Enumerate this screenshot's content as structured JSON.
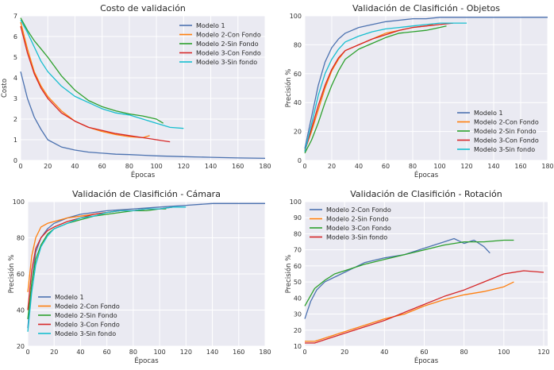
{
  "chart_data": [
    {
      "type": "line",
      "title": "Costo de validación",
      "xlabel": "Épocas",
      "ylabel": "Costo",
      "xlim": [
        0,
        180
      ],
      "ylim": [
        0,
        7
      ],
      "xticks": [
        0,
        20,
        40,
        60,
        80,
        100,
        120,
        140,
        160,
        180
      ],
      "yticks": [
        0,
        1,
        2,
        3,
        4,
        5,
        6,
        7
      ],
      "grid": true,
      "legend_position": "top-right",
      "series": [
        {
          "name": "Modelo 1",
          "color": "#4c72b0",
          "x": [
            0,
            5,
            10,
            15,
            20,
            30,
            40,
            50,
            60,
            70,
            80,
            90,
            100,
            110,
            120,
            140,
            160,
            180
          ],
          "y": [
            4.3,
            3.0,
            2.1,
            1.5,
            1.0,
            0.65,
            0.5,
            0.4,
            0.35,
            0.3,
            0.28,
            0.25,
            0.22,
            0.2,
            0.18,
            0.15,
            0.12,
            0.1
          ]
        },
        {
          "name": "Modelo 2-Con Fondo",
          "color": "#ff7f0e",
          "x": [
            0,
            5,
            10,
            15,
            20,
            30,
            40,
            50,
            60,
            70,
            80,
            90,
            95
          ],
          "y": [
            6.7,
            5.4,
            4.3,
            3.6,
            3.1,
            2.4,
            1.9,
            1.6,
            1.4,
            1.25,
            1.15,
            1.1,
            1.2
          ]
        },
        {
          "name": "Modelo 2-Sin Fondo",
          "color": "#2ca02c",
          "x": [
            0,
            5,
            10,
            15,
            20,
            30,
            40,
            50,
            60,
            70,
            80,
            90,
            100,
            105
          ],
          "y": [
            6.9,
            6.3,
            5.8,
            5.4,
            5.0,
            4.1,
            3.4,
            2.9,
            2.6,
            2.4,
            2.25,
            2.15,
            2.0,
            1.8
          ]
        },
        {
          "name": "Modelo 3-Con Fondo",
          "color": "#d62728",
          "x": [
            0,
            5,
            10,
            15,
            20,
            30,
            40,
            50,
            60,
            70,
            80,
            90,
            100,
            110
          ],
          "y": [
            6.5,
            5.2,
            4.2,
            3.5,
            3.0,
            2.3,
            1.9,
            1.6,
            1.45,
            1.3,
            1.2,
            1.1,
            1.0,
            0.9
          ]
        },
        {
          "name": "Modelo 3-Sin fondo",
          "color": "#17becf",
          "x": [
            0,
            5,
            10,
            15,
            20,
            30,
            40,
            50,
            60,
            70,
            80,
            90,
            100,
            110,
            120
          ],
          "y": [
            6.8,
            6.2,
            5.5,
            4.8,
            4.3,
            3.6,
            3.1,
            2.8,
            2.5,
            2.3,
            2.2,
            2.0,
            1.8,
            1.6,
            1.55
          ]
        }
      ]
    },
    {
      "type": "line",
      "title": "Validación de Clasifición - Objetos",
      "xlabel": "Épocas",
      "ylabel": "Precisión %",
      "xlim": [
        0,
        180
      ],
      "ylim": [
        0,
        100
      ],
      "xticks": [
        0,
        20,
        40,
        60,
        80,
        100,
        120,
        140,
        160,
        180
      ],
      "yticks": [
        0,
        20,
        40,
        60,
        80,
        100
      ],
      "grid": true,
      "legend_position": "bottom-right",
      "series": [
        {
          "name": "Modelo 1",
          "color": "#4c72b0",
          "x": [
            0,
            5,
            10,
            15,
            20,
            25,
            30,
            40,
            50,
            60,
            70,
            80,
            90,
            100,
            120,
            140,
            160,
            180
          ],
          "y": [
            8,
            30,
            52,
            68,
            78,
            84,
            88,
            92,
            94,
            96,
            97,
            98,
            98,
            99,
            99,
            99,
            99,
            99
          ]
        },
        {
          "name": "Modelo 2-Con Fondo",
          "color": "#ff7f0e",
          "x": [
            0,
            5,
            10,
            15,
            20,
            25,
            30,
            40,
            50,
            60,
            70,
            80,
            90,
            95
          ],
          "y": [
            7,
            20,
            35,
            50,
            62,
            70,
            76,
            80,
            84,
            88,
            90,
            92,
            93,
            94
          ]
        },
        {
          "name": "Modelo 2-Sin Fondo",
          "color": "#2ca02c",
          "x": [
            0,
            5,
            10,
            15,
            20,
            25,
            30,
            40,
            50,
            60,
            70,
            80,
            90,
            100,
            105
          ],
          "y": [
            5,
            14,
            26,
            40,
            52,
            62,
            70,
            77,
            81,
            85,
            88,
            89,
            90,
            92,
            93
          ]
        },
        {
          "name": "Modelo 3-Con Fondo",
          "color": "#d62728",
          "x": [
            0,
            5,
            10,
            15,
            20,
            25,
            30,
            40,
            50,
            60,
            70,
            80,
            90,
            100,
            110
          ],
          "y": [
            6,
            22,
            38,
            52,
            63,
            71,
            76,
            80,
            84,
            87,
            90,
            92,
            93,
            94,
            95
          ]
        },
        {
          "name": "Modelo 3-Sin fondo",
          "color": "#17becf",
          "x": [
            0,
            5,
            10,
            15,
            20,
            25,
            30,
            40,
            50,
            60,
            70,
            80,
            90,
            100,
            110,
            120
          ],
          "y": [
            6,
            25,
            45,
            60,
            70,
            77,
            82,
            86,
            89,
            91,
            92,
            93,
            94,
            95,
            95,
            95
          ]
        }
      ]
    },
    {
      "type": "line",
      "title": "Validación de Clasifición - Cámara",
      "xlabel": "Épocas",
      "ylabel": "Precisión %",
      "xlim": [
        0,
        180
      ],
      "ylim": [
        20,
        100
      ],
      "xticks": [
        0,
        20,
        40,
        60,
        80,
        100,
        120,
        140,
        160,
        180
      ],
      "yticks": [
        20,
        40,
        60,
        80,
        100
      ],
      "grid": true,
      "legend_position": "bottom-left",
      "series": [
        {
          "name": "Modelo 1",
          "color": "#4c72b0",
          "x": [
            0,
            3,
            6,
            10,
            15,
            20,
            30,
            40,
            50,
            60,
            80,
            100,
            120,
            140,
            160,
            180
          ],
          "y": [
            30,
            55,
            72,
            80,
            85,
            88,
            91,
            93,
            94,
            95,
            96,
            97,
            98,
            99,
            99,
            99
          ]
        },
        {
          "name": "Modelo 2-Con Fondo",
          "color": "#ff7f0e",
          "x": [
            0,
            3,
            6,
            10,
            15,
            20,
            30,
            40,
            50,
            60,
            70,
            80,
            90,
            95
          ],
          "y": [
            50,
            70,
            80,
            86,
            88,
            89,
            91,
            92,
            93,
            94,
            95,
            95,
            96,
            96
          ]
        },
        {
          "name": "Modelo 2-Sin Fondo",
          "color": "#2ca02c",
          "x": [
            0,
            3,
            6,
            10,
            15,
            20,
            30,
            40,
            50,
            60,
            70,
            80,
            90,
            100,
            105
          ],
          "y": [
            35,
            55,
            68,
            76,
            82,
            85,
            88,
            90,
            92,
            93,
            94,
            95,
            95,
            96,
            96
          ]
        },
        {
          "name": "Modelo 3-Con Fondo",
          "color": "#d62728",
          "x": [
            0,
            3,
            6,
            10,
            15,
            20,
            30,
            40,
            50,
            60,
            70,
            80,
            90,
            100,
            110
          ],
          "y": [
            40,
            62,
            74,
            80,
            84,
            86,
            89,
            91,
            93,
            94,
            95,
            95,
            96,
            96,
            97
          ]
        },
        {
          "name": "Modelo 3-Sin fondo",
          "color": "#17becf",
          "x": [
            0,
            3,
            6,
            10,
            15,
            20,
            30,
            40,
            50,
            60,
            70,
            80,
            90,
            100,
            110,
            120
          ],
          "y": [
            28,
            50,
            65,
            75,
            81,
            85,
            88,
            91,
            92,
            94,
            95,
            95,
            96,
            96,
            97,
            97
          ]
        }
      ]
    },
    {
      "type": "line",
      "title": "Validación de Clasifición - Rotación",
      "xlabel": "Épocas",
      "ylabel": "Precisión %",
      "xlim": [
        0,
        122
      ],
      "ylim": [
        10,
        100
      ],
      "xticks": [
        0,
        20,
        40,
        60,
        80,
        100,
        120
      ],
      "yticks": [
        10,
        20,
        30,
        40,
        50,
        60,
        70,
        80,
        90,
        100
      ],
      "grid": true,
      "legend_position": "top-left",
      "series": [
        {
          "name": "Modelo 2-Con Fondo",
          "color": "#4c72b0",
          "x": [
            0,
            3,
            6,
            10,
            15,
            20,
            25,
            30,
            40,
            50,
            60,
            70,
            75,
            80,
            85,
            90,
            93
          ],
          "y": [
            27,
            38,
            45,
            50,
            53,
            56,
            59,
            62,
            65,
            67,
            71,
            75,
            77,
            74,
            76,
            72,
            68
          ]
        },
        {
          "name": "Modelo 2-Sin Fondo",
          "color": "#ff7f0e",
          "x": [
            0,
            5,
            10,
            20,
            30,
            40,
            50,
            60,
            70,
            80,
            90,
            100,
            105
          ],
          "y": [
            13,
            13,
            15,
            19,
            23,
            27,
            30,
            35,
            39,
            42,
            44,
            47,
            50
          ]
        },
        {
          "name": "Modelo 3-Con Fondo",
          "color": "#2ca02c",
          "x": [
            0,
            5,
            10,
            15,
            20,
            25,
            30,
            40,
            50,
            60,
            70,
            80,
            90,
            100,
            105
          ],
          "y": [
            35,
            46,
            51,
            55,
            57,
            59,
            61,
            64,
            67,
            70,
            73,
            75,
            75,
            76,
            76
          ]
        },
        {
          "name": "Modelo 3-Sin fondo",
          "color": "#d62728",
          "x": [
            0,
            5,
            10,
            20,
            30,
            40,
            50,
            60,
            70,
            80,
            90,
            100,
            110,
            120
          ],
          "y": [
            12,
            12,
            14,
            18,
            22,
            26,
            31,
            36,
            41,
            45,
            50,
            55,
            57,
            56
          ]
        }
      ]
    }
  ]
}
